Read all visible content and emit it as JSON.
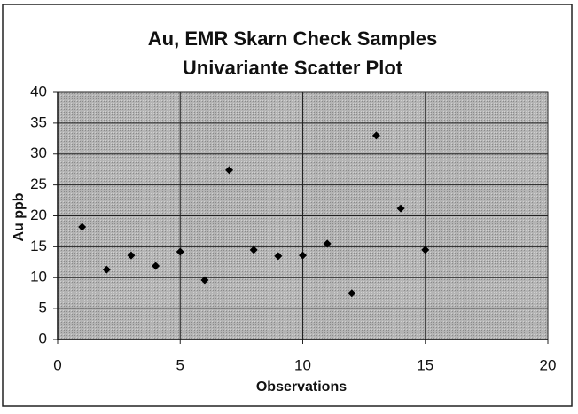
{
  "chart_data": {
    "type": "scatter",
    "title": "Au, EMR Skarn Check Samples",
    "subtitle": "Univariante Scatter Plot",
    "x_label": "Observations",
    "y_label": "Au ppb",
    "x": [
      1,
      2,
      3,
      4,
      5,
      6,
      7,
      8,
      9,
      10,
      11,
      12,
      13,
      14,
      15
    ],
    "values": [
      18.2,
      11.3,
      13.6,
      11.9,
      14.2,
      9.6,
      27.4,
      14.5,
      13.5,
      13.6,
      15.5,
      7.5,
      33.0,
      21.2,
      14.5
    ],
    "color": "#000000",
    "xlim": [
      0,
      20
    ],
    "xticks": [
      0,
      5,
      10,
      15,
      20
    ],
    "ylim": [
      0,
      40
    ],
    "yticks": [
      0,
      5,
      10,
      15,
      20,
      25,
      30,
      35,
      40
    ],
    "grid": true
  }
}
